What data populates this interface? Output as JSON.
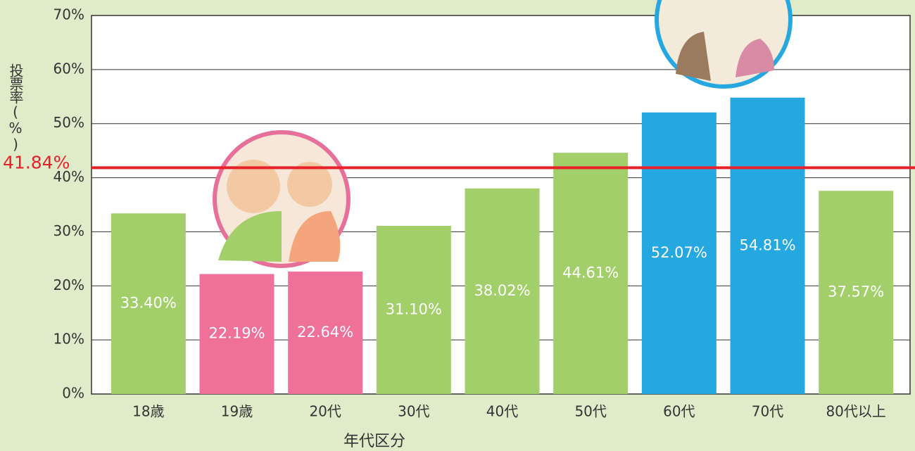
{
  "chart_data": {
    "type": "bar",
    "x_label": "年代区分",
    "y_label": "投票率(%)",
    "categories": [
      "18歳",
      "19歳",
      "20代",
      "30代",
      "40代",
      "50代",
      "60代",
      "70代",
      "80代以上"
    ],
    "values": [
      33.4,
      22.19,
      22.64,
      31.1,
      38.02,
      44.61,
      52.07,
      54.81,
      37.57
    ],
    "value_labels": [
      "33.40%",
      "22.19%",
      "22.64%",
      "31.10%",
      "38.02%",
      "44.61%",
      "52.07%",
      "54.81%",
      "37.57%"
    ],
    "colors": [
      "#a3cf6a",
      "#ef7099",
      "#ef7099",
      "#a3cf6a",
      "#a3cf6a",
      "#a3cf6a",
      "#25a8e0",
      "#25a8e0",
      "#a3cf6a"
    ],
    "ylim": [
      0,
      70
    ],
    "yticks": [
      {
        "value": 0,
        "label": "0%"
      },
      {
        "value": 10,
        "label": "10%"
      },
      {
        "value": 20,
        "label": "20%"
      },
      {
        "value": 30,
        "label": "30%"
      },
      {
        "value": 40,
        "label": "40%"
      },
      {
        "value": 50,
        "label": "50%"
      },
      {
        "value": 60,
        "label": "60%"
      },
      {
        "value": 70,
        "label": "70%"
      }
    ],
    "grid": true,
    "reference_line": {
      "value": 41.84,
      "label": "41.84%",
      "color": "#e8202a"
    }
  }
}
